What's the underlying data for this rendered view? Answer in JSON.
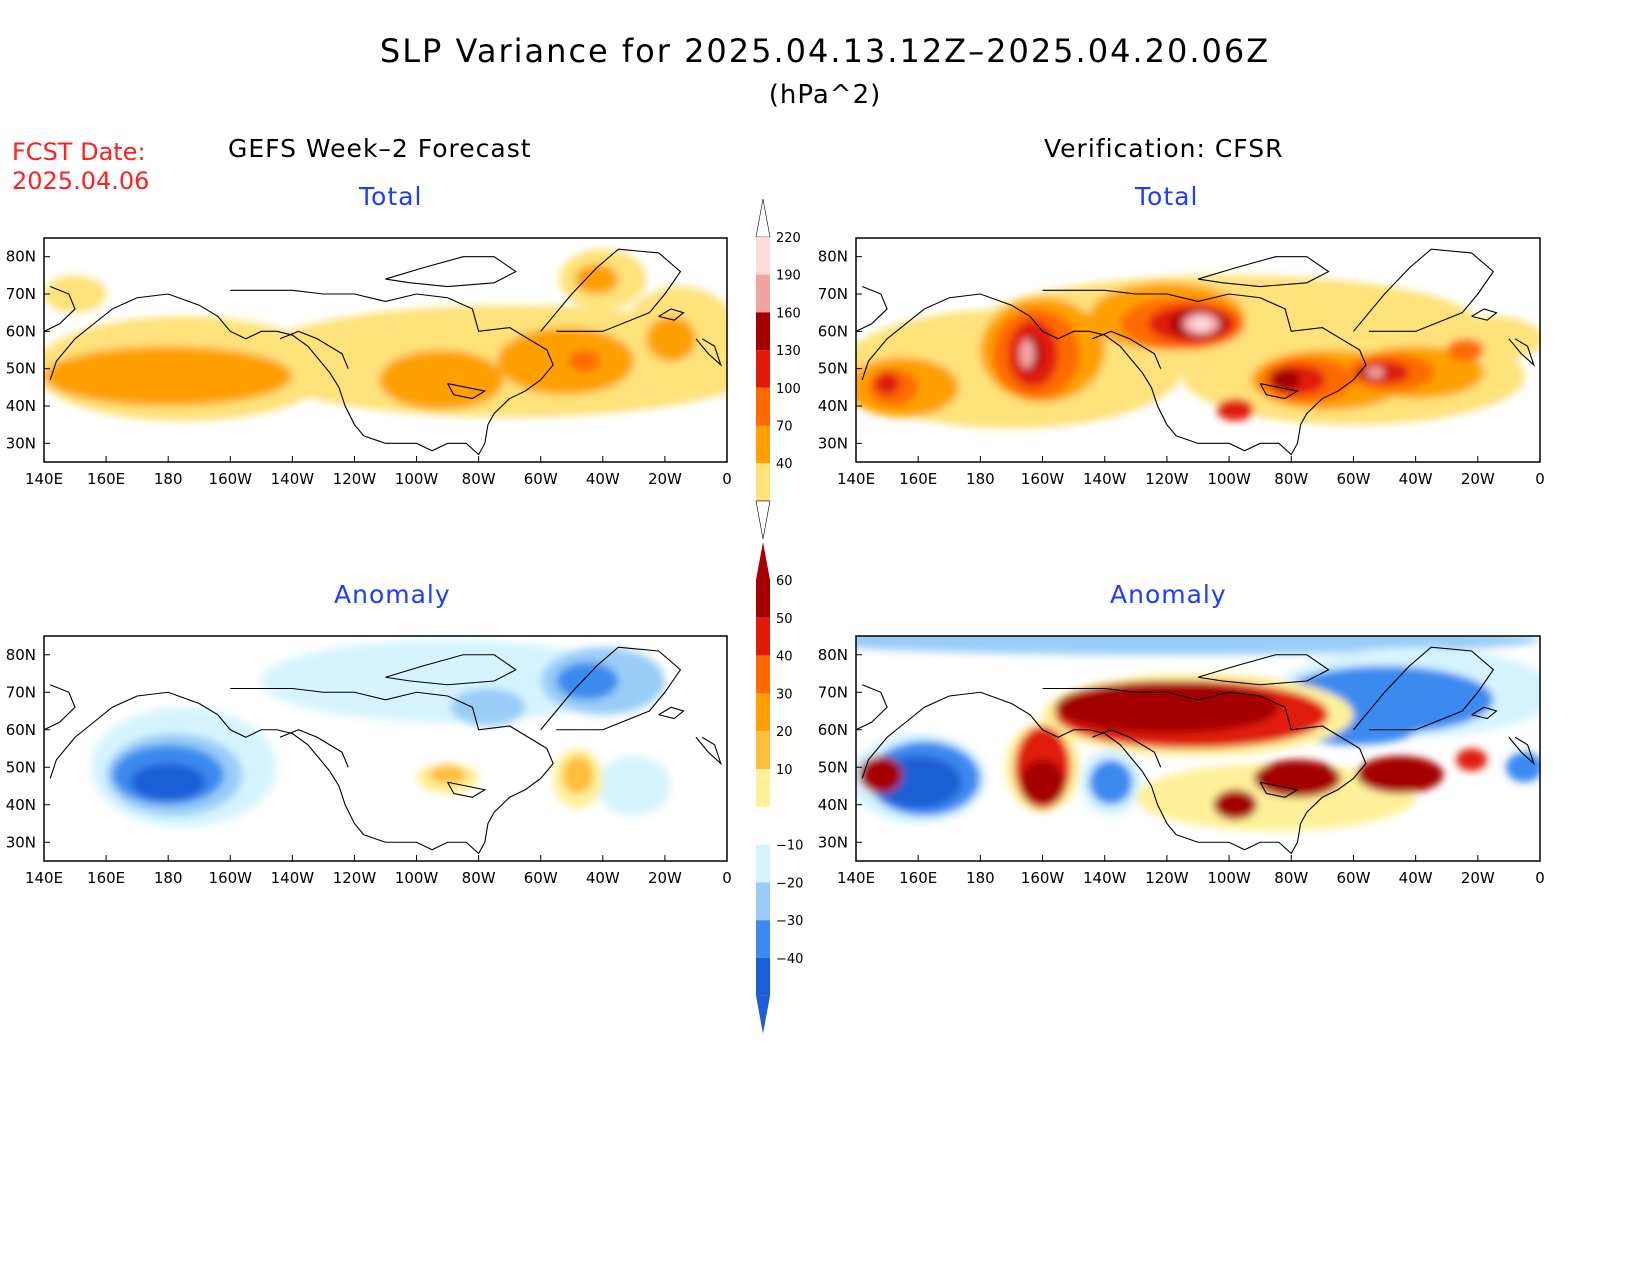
{
  "title": "SLP Variance for 2025.04.13.12Z–2025.04.20.06Z",
  "unit": "(hPa^2)",
  "fcst_label": "FCST Date:",
  "fcst_date": "2025.04.06",
  "left_column_title": "GEFS Week–2 Forecast",
  "right_column_title": "Verification: CFSR",
  "panels": [
    {
      "id": "gefs-total",
      "subtitle": "Total"
    },
    {
      "id": "cfsr-total",
      "subtitle": "Total"
    },
    {
      "id": "gefs-anomaly",
      "subtitle": "Anomaly"
    },
    {
      "id": "cfsr-anomaly",
      "subtitle": "Anomaly"
    }
  ],
  "axes": {
    "lon_labels": [
      "140E",
      "160E",
      "180",
      "160W",
      "140W",
      "120W",
      "100W",
      "80W",
      "60W",
      "40W",
      "20W",
      "0"
    ],
    "lat_labels": [
      "80N",
      "70N",
      "60N",
      "50N",
      "40N",
      "30N"
    ],
    "lon_range": [
      140,
      360
    ],
    "lat_range": [
      25,
      85
    ]
  },
  "colorbar_total": {
    "levels": [
      "220",
      "190",
      "160",
      "130",
      "100",
      "70",
      "40"
    ],
    "colors": [
      "#fddbdb",
      "#f4a3a3",
      "#a50000",
      "#e01a08",
      "#ff6a00",
      "#ffa000",
      "#ffe27a"
    ]
  },
  "colorbar_anomaly": {
    "levels": [
      "60",
      "50",
      "40",
      "30",
      "20",
      "10",
      "−10",
      "−20",
      "−30",
      "−40"
    ],
    "colors": [
      "#a50000",
      "#e01a08",
      "#ff6a00",
      "#ffa000",
      "#ffbe3c",
      "#fff19a",
      "#ffffff",
      "#d6f4ff",
      "#99cdf7",
      "#3b8af0",
      "#1c5fd4"
    ]
  },
  "palette": {
    "total": [
      "#ffe27a",
      "#ffa000",
      "#ff6a00",
      "#e01a08",
      "#a50000",
      "#f4a3a3",
      "#fddbdb"
    ],
    "anomaly_pos": [
      "#fff19a",
      "#ffbe3c",
      "#ffa000",
      "#ff6a00",
      "#e01a08",
      "#a50000"
    ],
    "anomaly_neg": [
      "#d6f4ff",
      "#99cdf7",
      "#3b8af0",
      "#1c5fd4"
    ]
  }
}
